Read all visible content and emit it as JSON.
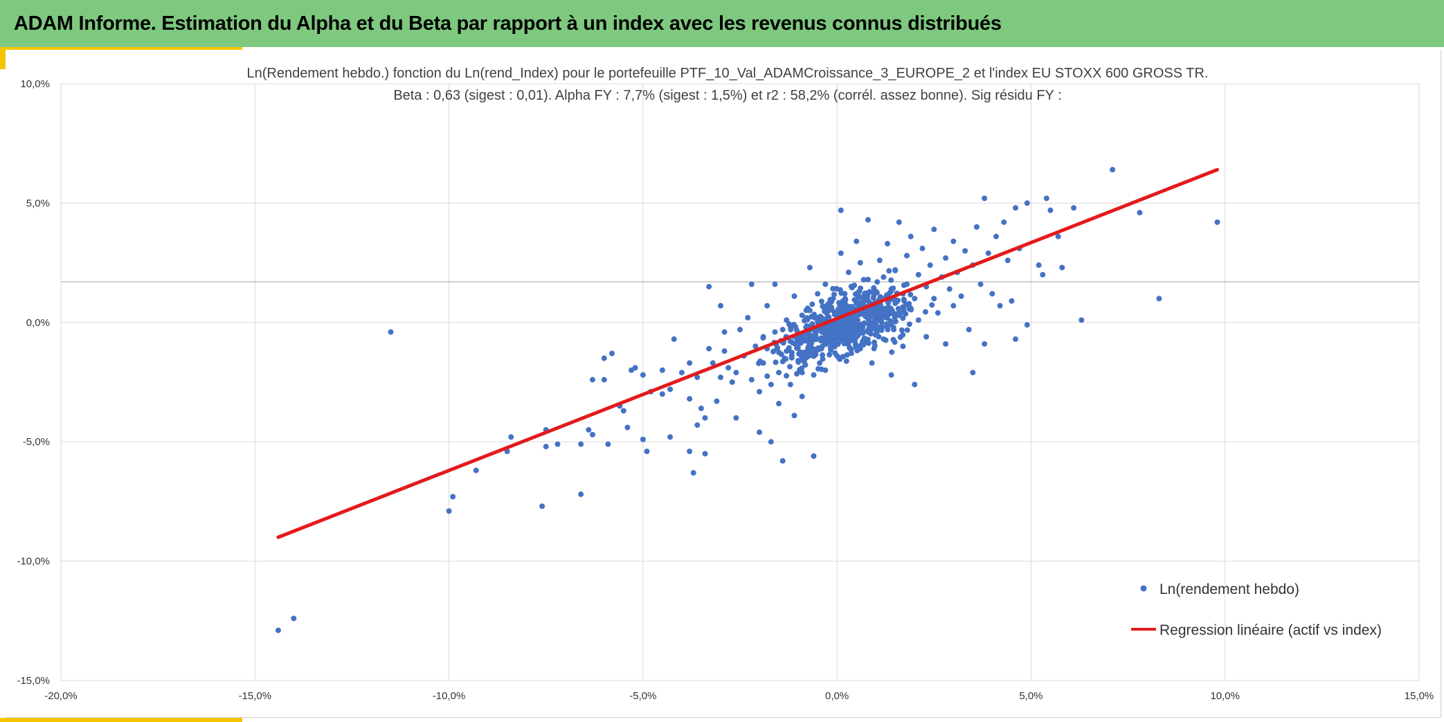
{
  "header": {
    "title": "ADAM Informe. Estimation du Alpha et du Beta par rapport à un index avec les revenus connus distribués"
  },
  "colors": {
    "banner": "#7ec97f",
    "accent": "#f5c400",
    "points": "#4472c4",
    "regression": "#e31a1c",
    "grid": "#d9d9d9"
  },
  "chart_data": {
    "type": "scatter",
    "title_line1": "Ln(Rendement hebdo.) fonction du Ln(rend_Index) pour le portefeuille PTF_10_Val_ADAMCroissance_3_EUROPE_2 et l'index EU STOXX 600 GROSS TR.",
    "title_line2": "Beta : 0,63 (sigest : 0,01).  Alpha FY : 7,7% (sigest : 1,5%) et r2 : 58,2% (corrél.  assez bonne). Sig résidu FY :",
    "xlim": [
      -20,
      15
    ],
    "ylim": [
      -15,
      10
    ],
    "x_ticks": [
      -20,
      -15,
      -10,
      -5,
      0,
      5,
      10,
      15
    ],
    "x_tick_labels": [
      "-20,0%",
      "-15,0%",
      "-10,0%",
      "-5,0%",
      "0,0%",
      "5,0%",
      "10,0%",
      "15,0%"
    ],
    "y_ticks": [
      10,
      5,
      0,
      -5,
      -10,
      -15
    ],
    "y_tick_labels": [
      "10,0%",
      "5,0%",
      "0,0%",
      "-5,0%",
      "-10,0%",
      "-15,0%"
    ],
    "reference_line_y": 1.7,
    "series": [
      {
        "name": "Ln(rendement hebdo)",
        "kind": "points",
        "points": [
          [
            -14.4,
            -12.9
          ],
          [
            -14.0,
            -12.4
          ],
          [
            -11.5,
            -0.4
          ],
          [
            -10.0,
            -7.9
          ],
          [
            -9.9,
            -7.3
          ],
          [
            -9.3,
            -6.2
          ],
          [
            -8.5,
            -5.4
          ],
          [
            -8.4,
            -4.8
          ],
          [
            -7.6,
            -7.7
          ],
          [
            -7.5,
            -4.5
          ],
          [
            -7.5,
            -5.2
          ],
          [
            -7.2,
            -5.1
          ],
          [
            -6.6,
            -7.2
          ],
          [
            -6.6,
            -5.1
          ],
          [
            -6.4,
            -4.5
          ],
          [
            -6.3,
            -4.7
          ],
          [
            -6.3,
            -2.4
          ],
          [
            -6.0,
            -2.4
          ],
          [
            -6.0,
            -1.5
          ],
          [
            -5.9,
            -5.1
          ],
          [
            -5.8,
            -1.3
          ],
          [
            -5.6,
            -3.5
          ],
          [
            -5.5,
            -3.7
          ],
          [
            -5.4,
            -4.4
          ],
          [
            -5.3,
            -2.0
          ],
          [
            -5.2,
            -1.9
          ],
          [
            -5.0,
            -4.9
          ],
          [
            -5.0,
            -2.2
          ],
          [
            -4.9,
            -5.4
          ],
          [
            -4.8,
            -2.9
          ],
          [
            -4.5,
            -3.0
          ],
          [
            -4.5,
            -2.0
          ],
          [
            -4.3,
            -2.8
          ],
          [
            -4.3,
            -4.8
          ],
          [
            -4.2,
            -0.7
          ],
          [
            -4.0,
            -2.1
          ],
          [
            -3.8,
            -1.7
          ],
          [
            -3.8,
            -3.2
          ],
          [
            -3.8,
            -5.4
          ],
          [
            -3.7,
            -6.3
          ],
          [
            -3.6,
            -2.3
          ],
          [
            -3.6,
            -4.3
          ],
          [
            -3.5,
            -3.6
          ],
          [
            -3.4,
            -4.0
          ],
          [
            -3.4,
            -5.5
          ],
          [
            -3.3,
            -1.1
          ],
          [
            -3.3,
            1.5
          ],
          [
            -3.2,
            -1.7
          ],
          [
            -3.1,
            -3.3
          ],
          [
            -3.0,
            -2.3
          ],
          [
            -3.0,
            0.7
          ],
          [
            -2.9,
            -0.4
          ],
          [
            -2.9,
            -1.2
          ],
          [
            -2.8,
            -1.9
          ],
          [
            -2.7,
            -2.5
          ],
          [
            -2.6,
            -2.1
          ],
          [
            -2.6,
            -4.0
          ],
          [
            -2.5,
            -0.3
          ],
          [
            -2.4,
            -1.4
          ],
          [
            -2.3,
            0.2
          ],
          [
            -2.2,
            -2.4
          ],
          [
            -2.2,
            1.6
          ],
          [
            -2.1,
            -1.0
          ],
          [
            -2.0,
            -2.9
          ],
          [
            -2.0,
            -4.6
          ],
          [
            -1.9,
            -0.6
          ],
          [
            -1.9,
            -1.7
          ],
          [
            -1.8,
            0.7
          ],
          [
            -1.8,
            -1.1
          ],
          [
            -1.7,
            -2.6
          ],
          [
            -1.7,
            -5.0
          ],
          [
            -1.6,
            -0.4
          ],
          [
            -1.6,
            1.6
          ],
          [
            -1.5,
            -2.1
          ],
          [
            -1.5,
            -3.4
          ],
          [
            -1.4,
            -0.3
          ],
          [
            -1.4,
            -5.8
          ],
          [
            -1.3,
            0.1
          ],
          [
            -1.3,
            -1.2
          ],
          [
            -1.2,
            -2.6
          ],
          [
            -1.1,
            -0.6
          ],
          [
            -1.1,
            1.1
          ],
          [
            -1.1,
            -3.9
          ],
          [
            -1.0,
            -0.9
          ],
          [
            -1.0,
            -1.6
          ],
          [
            -0.9,
            0.3
          ],
          [
            -0.9,
            -2.1
          ],
          [
            -0.9,
            -3.1
          ],
          [
            -0.8,
            -0.2
          ],
          [
            -0.8,
            -1.3
          ],
          [
            -0.7,
            0.5
          ],
          [
            -0.7,
            2.3
          ],
          [
            -0.6,
            -0.7
          ],
          [
            -0.6,
            -2.2
          ],
          [
            -0.6,
            -5.6
          ],
          [
            -0.5,
            1.2
          ],
          [
            -0.5,
            -0.3
          ],
          [
            -0.4,
            -1.1
          ],
          [
            -0.4,
            0.2
          ],
          [
            -0.3,
            -0.5
          ],
          [
            -0.3,
            1.6
          ],
          [
            -0.3,
            -2.0
          ],
          [
            -0.2,
            0.6
          ],
          [
            -0.2,
            -0.1
          ],
          [
            -0.1,
            -0.9
          ],
          [
            -0.1,
            1.0
          ],
          [
            0.0,
            0.0
          ],
          [
            0.0,
            -1.4
          ],
          [
            0.1,
            0.4
          ],
          [
            0.1,
            2.9
          ],
          [
            0.1,
            4.7
          ],
          [
            0.2,
            1.2
          ],
          [
            0.2,
            -0.6
          ],
          [
            0.3,
            0.5
          ],
          [
            0.3,
            2.1
          ],
          [
            0.4,
            -0.3
          ],
          [
            0.4,
            1.5
          ],
          [
            0.5,
            0.1
          ],
          [
            0.5,
            0.8
          ],
          [
            0.5,
            3.4
          ],
          [
            0.6,
            -1.1
          ],
          [
            0.6,
            2.5
          ],
          [
            0.7,
            0.5
          ],
          [
            0.7,
            1.1
          ],
          [
            0.8,
            -0.4
          ],
          [
            0.8,
            1.8
          ],
          [
            0.8,
            4.3
          ],
          [
            0.9,
            0.7
          ],
          [
            0.9,
            -1.7
          ],
          [
            1.0,
            1.3
          ],
          [
            1.0,
            0.2
          ],
          [
            1.1,
            2.6
          ],
          [
            1.1,
            0.9
          ],
          [
            1.2,
            -0.7
          ],
          [
            1.2,
            1.9
          ],
          [
            1.3,
            0.5
          ],
          [
            1.3,
            3.3
          ],
          [
            1.4,
            1.4
          ],
          [
            1.4,
            -2.2
          ],
          [
            1.5,
            0.8
          ],
          [
            1.5,
            2.2
          ],
          [
            1.6,
            4.2
          ],
          [
            1.6,
            0.3
          ],
          [
            1.7,
            1.2
          ],
          [
            1.7,
            -1.0
          ],
          [
            1.8,
            2.8
          ],
          [
            1.8,
            1.6
          ],
          [
            1.9,
            0.6
          ],
          [
            1.9,
            3.6
          ],
          [
            2.0,
            1.0
          ],
          [
            2.0,
            -2.6
          ],
          [
            2.1,
            2.0
          ],
          [
            2.1,
            0.1
          ],
          [
            2.2,
            3.1
          ],
          [
            2.3,
            1.5
          ],
          [
            2.3,
            -0.6
          ],
          [
            2.4,
            2.4
          ],
          [
            2.5,
            1.0
          ],
          [
            2.5,
            3.9
          ],
          [
            2.6,
            0.4
          ],
          [
            2.7,
            1.9
          ],
          [
            2.8,
            2.7
          ],
          [
            2.8,
            -0.9
          ],
          [
            2.9,
            1.4
          ],
          [
            3.0,
            3.4
          ],
          [
            3.0,
            0.7
          ],
          [
            3.1,
            2.1
          ],
          [
            3.2,
            1.1
          ],
          [
            3.3,
            3.0
          ],
          [
            3.4,
            -0.3
          ],
          [
            3.5,
            2.4
          ],
          [
            3.5,
            -2.1
          ],
          [
            3.6,
            4.0
          ],
          [
            3.7,
            1.6
          ],
          [
            3.8,
            -0.9
          ],
          [
            3.8,
            5.2
          ],
          [
            3.9,
            2.9
          ],
          [
            4.0,
            1.2
          ],
          [
            4.1,
            3.6
          ],
          [
            4.2,
            0.7
          ],
          [
            4.3,
            4.2
          ],
          [
            4.4,
            2.6
          ],
          [
            4.5,
            0.9
          ],
          [
            4.6,
            4.8
          ],
          [
            4.6,
            -0.7
          ],
          [
            4.7,
            3.1
          ],
          [
            4.9,
            -0.1
          ],
          [
            4.9,
            5.0
          ],
          [
            5.2,
            2.4
          ],
          [
            5.3,
            2.0
          ],
          [
            5.4,
            5.2
          ],
          [
            5.5,
            4.7
          ],
          [
            5.7,
            3.6
          ],
          [
            5.8,
            2.3
          ],
          [
            6.1,
            4.8
          ],
          [
            6.3,
            0.1
          ],
          [
            7.1,
            6.4
          ],
          [
            7.8,
            4.6
          ],
          [
            8.3,
            1.0
          ],
          [
            9.8,
            4.2
          ]
        ]
      },
      {
        "name": "Regression linéaire (actif vs index)",
        "kind": "line",
        "points": [
          [
            -14.4,
            -9.0
          ],
          [
            9.8,
            6.4
          ]
        ]
      }
    ],
    "legend": {
      "placement": "bottom-right",
      "items": [
        {
          "label": "Ln(rendement hebdo)",
          "marker": "point"
        },
        {
          "label": "Regression linéaire (actif vs index)",
          "marker": "line"
        }
      ]
    },
    "dense_cloud": {
      "center": [
        0.2,
        0.0
      ],
      "count": 650,
      "note": "additional generated points following the regression relation"
    }
  }
}
